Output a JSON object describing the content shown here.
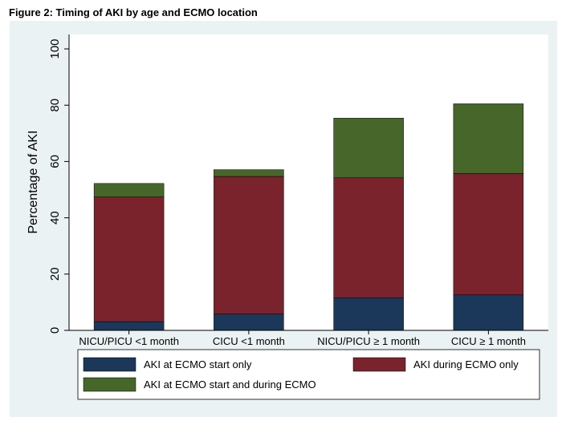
{
  "figure_title": "Figure 2: Timing of AKI by age and ECMO location",
  "colors": {
    "background": "#eaf2f3",
    "plot_area": "#ffffff",
    "at_start": "#1b3759",
    "during": "#7a232c",
    "both": "#46662a"
  },
  "chart_data": {
    "type": "bar",
    "stacked": true,
    "title": "",
    "xlabel": "",
    "ylabel": "Percentage of AKI",
    "ylim": [
      0,
      100
    ],
    "yticks": [
      0,
      20,
      40,
      60,
      80,
      100
    ],
    "grid": false,
    "legend_placement": "bottom",
    "categories": [
      "NICU/PICU <1 month",
      "CICU <1 month",
      "NICU/PICU ≥ 1 month",
      "CICU ≥ 1 month"
    ],
    "series": [
      {
        "name": "AKI at ECMO start only",
        "values": [
          3.1,
          5.8,
          11.6,
          12.6
        ],
        "color": "#1b3759"
      },
      {
        "name": "AKI during ECMO only",
        "values": [
          44.3,
          48.9,
          42.6,
          43.1
        ],
        "color": "#7a232c"
      },
      {
        "name": "AKI at ECMO start and during ECMO",
        "values": [
          4.8,
          2.4,
          21.2,
          24.8
        ],
        "color": "#46662a"
      }
    ]
  }
}
